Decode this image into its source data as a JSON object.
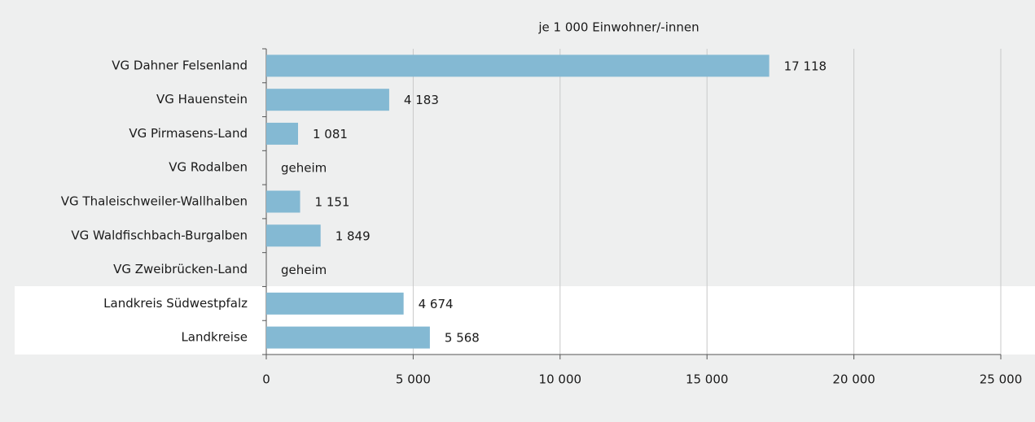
{
  "chart_data": {
    "type": "bar",
    "orientation": "horizontal",
    "title": "je 1 000 Einwohner/-innen",
    "categories": [
      "VG Dahner Felsenland",
      "VG Hauenstein",
      "VG Pirmasens-Land",
      "VG Rodalben",
      "VG Thaleischweiler-Wallhalben",
      "VG Waldfischbach-Burgalben",
      "VG Zweibrücken-Land",
      "Landkreis Südwestpfalz",
      "Landkreise"
    ],
    "values": [
      17118,
      4183,
      1081,
      null,
      1151,
      1849,
      null,
      4674,
      5568
    ],
    "value_labels": [
      "17 118",
      "4 183",
      "1 081",
      "geheim",
      "1 151",
      "1 849",
      "geheim",
      "4 674",
      "5 568"
    ],
    "color": "#84b9d3",
    "xlim": [
      0,
      25000
    ],
    "xticks": [
      0,
      {
        "value": 5000,
        "label": "5 000"
      },
      {
        "value": 10000,
        "label": "10 000"
      },
      {
        "value": 15000,
        "label": "15 000"
      },
      {
        "value": 20000,
        "label": "20 000"
      },
      {
        "value": 25000,
        "label": "25 000"
      }
    ],
    "grid": true
  }
}
